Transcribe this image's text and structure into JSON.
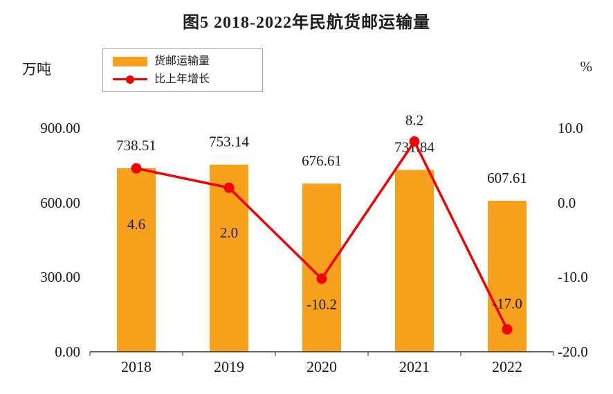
{
  "title": "图5 2018-2022年民航货邮运输量",
  "units": {
    "left": "万吨",
    "right": "%"
  },
  "legend": [
    {
      "label": "货邮运输量",
      "marker": "bar-swatch",
      "color": "#F7A11C"
    },
    {
      "label": "比上年增长",
      "marker": "line-dot-swatch",
      "color": "#F40000"
    }
  ],
  "chart_data": {
    "type": "bar",
    "combo": "bar+line",
    "title": "图5 2018-2022年民航货邮运输量",
    "categories": [
      "2018",
      "2019",
      "2020",
      "2021",
      "2022"
    ],
    "series": [
      {
        "name": "货邮运输量",
        "type": "bar",
        "axis": "left",
        "color": "#F7A11C",
        "values": [
          738.51,
          753.14,
          676.61,
          731.84,
          607.61
        ],
        "labels": [
          "738.51",
          "753.14",
          "676.61",
          "731.84",
          "607.61"
        ],
        "label_offset": -26
      },
      {
        "name": "比上年增长",
        "type": "line",
        "axis": "right",
        "color": "#F40000",
        "values": [
          4.6,
          2.0,
          -10.2,
          8.2,
          -17.0
        ],
        "labels": [
          "4.6",
          "2.0",
          "-10.2",
          "8.2",
          "-17.0"
        ],
        "label_offsets": [
          [
            0,
            88
          ],
          [
            0,
            72
          ],
          [
            0,
            44
          ],
          [
            0,
            -24
          ],
          [
            0,
            -30
          ]
        ]
      }
    ],
    "left_axis": {
      "label": "万吨",
      "min": 0,
      "max": 900,
      "ticks": [
        "900.00",
        "600.00",
        "300.00",
        "0.00"
      ]
    },
    "right_axis": {
      "label": "%",
      "min": -20,
      "max": 10,
      "ticks": [
        "10.0",
        "0.0",
        "-10.0",
        "-20.0"
      ]
    },
    "legend_position": "top-left",
    "grid": false,
    "axis_line_color": "#333333",
    "text_color": "#1a1a1a"
  }
}
